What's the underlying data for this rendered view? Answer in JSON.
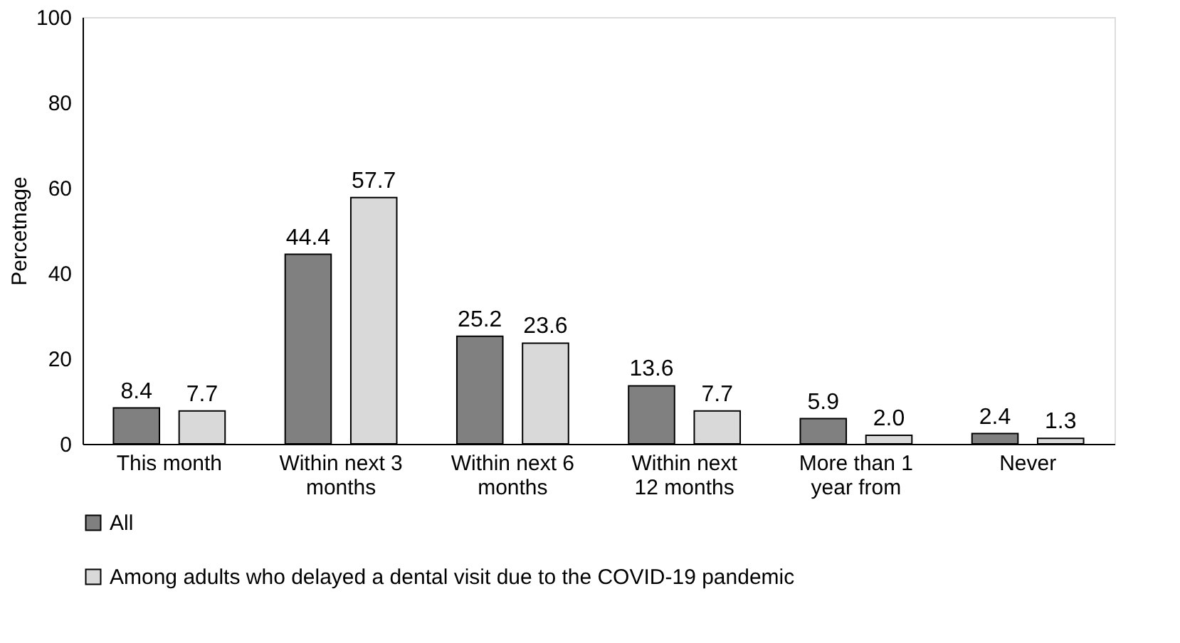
{
  "chart_data": {
    "type": "bar",
    "ylabel": "Percetnage",
    "categories": [
      "This month",
      "Within next 3 months",
      "Within next 6 months",
      "Within next 12 months",
      "More than 1 year from",
      "Never"
    ],
    "series": [
      {
        "name": "All",
        "color": "#808080",
        "values": [
          8.4,
          44.4,
          25.2,
          13.6,
          5.9,
          2.4
        ],
        "value_labels": [
          "8.4",
          "44.4",
          "25.2",
          "13.6",
          "5.9",
          "2.4"
        ]
      },
      {
        "name": "Among adults who delayed a dental visit due to the COVID-19 pandemic",
        "color": "#d9d9d9",
        "values": [
          7.7,
          57.7,
          23.6,
          7.7,
          2.0,
          1.3
        ],
        "value_labels": [
          "7.7",
          "57.7",
          "23.6",
          "7.7",
          "2.0",
          "1.3"
        ]
      }
    ],
    "ylim": [
      0,
      100
    ],
    "yticks": [
      0,
      20,
      40,
      60,
      80,
      100
    ],
    "grid": false,
    "legend": "bottom left"
  }
}
